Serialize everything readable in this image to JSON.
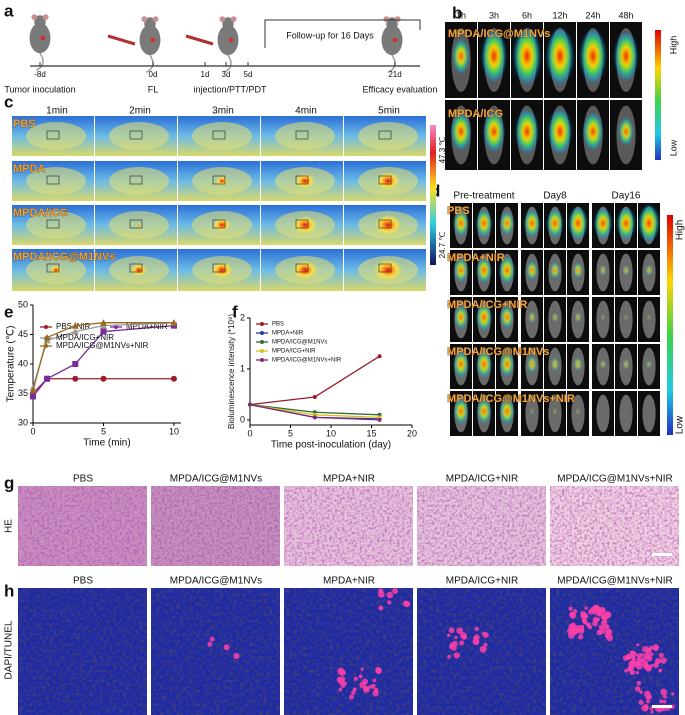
{
  "panel_letters": [
    "a",
    "b",
    "c",
    "d",
    "e",
    "f",
    "g",
    "h"
  ],
  "panel_a": {
    "days": [
      "-8d",
      "0d",
      "1d",
      "3d",
      "5d",
      "21d"
    ],
    "steps": [
      "Tumor inoculation",
      "FL",
      "injection/PTT/PDT",
      "Follow-up for 16 Days",
      "Efficacy evaluation"
    ]
  },
  "panel_b": {
    "times": [
      "1h",
      "3h",
      "6h",
      "12h",
      "24h",
      "48h"
    ],
    "groups": [
      "MPDA/ICG@M1NVs",
      "MPDA/ICG"
    ],
    "scale": [
      "High",
      "Low"
    ]
  },
  "panel_c": {
    "times": [
      "1min",
      "2min",
      "3min",
      "4min",
      "5min"
    ],
    "groups": [
      "PBS",
      "MPDA",
      "MPDA/ICG",
      "MPDA/ICG@M1NVs"
    ],
    "scale": [
      "47.3 ℃",
      "24.7 ℃"
    ]
  },
  "panel_d": {
    "times": [
      "Pre-treatment",
      "Day8",
      "Day16"
    ],
    "groups": [
      "PBS",
      "MPDA+NIR",
      "MPDA/ICG+NIR",
      "MPDA/ICG@M1NVs",
      "MPDA/ICG@M1NVs+NIR"
    ],
    "scale": [
      "High",
      "Low"
    ]
  },
  "panel_g": {
    "stain": "HE",
    "groups": [
      "PBS",
      "MPDA/ICG@M1NVs",
      "MPDA+NIR",
      "MPDA/ICG+NIR",
      "MPDA/ICG@M1NVs+NIR"
    ]
  },
  "panel_h": {
    "stain": "DAPI/TUNEL",
    "groups": [
      "PBS",
      "MPDA/ICG@M1NVs",
      "MPDA+NIR",
      "MPDA/ICG+NIR",
      "MPDA/ICG@M1NVs+NIR"
    ]
  },
  "chart_data": [
    {
      "type": "line",
      "x_label": "Time (min)",
      "y_label": "Temperature (℃)",
      "x": [
        0,
        1,
        3,
        5,
        10
      ],
      "xlim": [
        0,
        10.5
      ],
      "xticks": [
        0,
        5,
        10
      ],
      "ylim": [
        30,
        50
      ],
      "yticks": [
        30,
        35,
        40,
        45,
        50
      ],
      "series": [
        {
          "name": "PBS+NIR",
          "color": "#9b1c2c",
          "marker": "circle",
          "values": [
            35,
            37.5,
            37.5,
            37.5,
            37.5
          ]
        },
        {
          "name": "MPDA+NIR",
          "color": "#7b2a9a",
          "marker": "square",
          "values": [
            34.5,
            37.5,
            40,
            45.5,
            46.5
          ]
        },
        {
          "name": "MPDA/ICG+NIR",
          "color": "#9a9a9a",
          "marker": "triangle",
          "values": [
            36,
            44,
            45.5,
            46.5,
            47
          ]
        },
        {
          "name": "MPDA/ICG@M1NVs+NIR",
          "color": "#9a6a20",
          "marker": "triangle",
          "values": [
            35.5,
            44.5,
            46.5,
            47,
            47
          ]
        }
      ]
    },
    {
      "type": "line",
      "x_label": "Time post-inoculation (day)",
      "y_label": "Bioluminescence intensity (*10⁸)",
      "x": [
        0,
        8,
        16
      ],
      "xlim": [
        0,
        20
      ],
      "xticks": [
        0,
        5,
        10,
        15,
        20
      ],
      "ylim": [
        -0.1,
        2
      ],
      "yticks": [
        0,
        1,
        2
      ],
      "series": [
        {
          "name": "PBS",
          "color": "#9b1c2c",
          "marker": "circle",
          "values": [
            0.3,
            0.45,
            1.25
          ]
        },
        {
          "name": "MPDA+NIR",
          "color": "#2a3aa8",
          "marker": "circle",
          "values": [
            0.3,
            0.05,
            0.02
          ]
        },
        {
          "name": "MPDA/ICG@M1NVs",
          "color": "#2e6b3a",
          "marker": "circle",
          "values": [
            0.3,
            0.15,
            0.1
          ]
        },
        {
          "name": "MPDA/ICG+NIR",
          "color": "#d8c21a",
          "marker": "circle",
          "values": [
            0.3,
            0.1,
            0.05
          ]
        },
        {
          "name": "MPDA/ICG@M1NVs+NIR",
          "color": "#7a2a7a",
          "marker": "circle",
          "values": [
            0.3,
            0.05,
            0
          ]
        }
      ]
    }
  ]
}
